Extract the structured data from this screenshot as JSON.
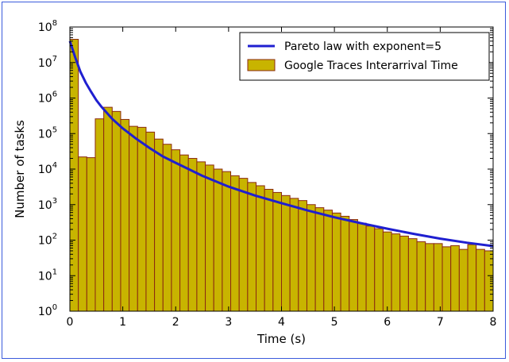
{
  "chart_data": {
    "type": "bar",
    "title": "",
    "xlabel": "Time (s)",
    "ylabel": "Number of tasks",
    "y_scale": "log",
    "xlim": [
      0,
      8
    ],
    "ylim": [
      1,
      100000000
    ],
    "x_ticks": [
      {
        "value": 0,
        "label": "0"
      },
      {
        "value": 1,
        "label": "1"
      },
      {
        "value": 2,
        "label": "2"
      },
      {
        "value": 3,
        "label": "3"
      },
      {
        "value": 4,
        "label": "4"
      },
      {
        "value": 5,
        "label": "5"
      },
      {
        "value": 6,
        "label": "6"
      },
      {
        "value": 7,
        "label": "7"
      },
      {
        "value": 8,
        "label": "8"
      }
    ],
    "y_ticks": [
      {
        "value": 1,
        "base": "10",
        "exp": "0"
      },
      {
        "value": 10,
        "base": "10",
        "exp": "1"
      },
      {
        "value": 100,
        "base": "10",
        "exp": "2"
      },
      {
        "value": 1000,
        "base": "10",
        "exp": "3"
      },
      {
        "value": 10000,
        "base": "10",
        "exp": "4"
      },
      {
        "value": 100000,
        "base": "10",
        "exp": "5"
      },
      {
        "value": 1000000,
        "base": "10",
        "exp": "6"
      },
      {
        "value": 10000000,
        "base": "10",
        "exp": "7"
      },
      {
        "value": 100000000,
        "base": "10",
        "exp": "8"
      }
    ],
    "legend_position": "top-right",
    "grid": false,
    "series": [
      {
        "name": "Pareto law with exponent=5",
        "kind": "line",
        "color": "#1f1fd0",
        "x": [
          0,
          0.1,
          0.2,
          0.3,
          0.4,
          0.5,
          0.6,
          0.8,
          1.0,
          1.25,
          1.5,
          1.75,
          2.0,
          2.5,
          3.0,
          3.5,
          4.0,
          4.5,
          5.0,
          5.5,
          6.0,
          6.5,
          7.0,
          7.5,
          8.0
        ],
        "y": [
          40000000,
          14000000,
          5500000,
          2700000,
          1500000,
          870000,
          560000,
          260000,
          140000,
          72000,
          40000,
          23000,
          15000,
          6500,
          3200,
          1800,
          1100,
          680,
          440,
          300,
          210,
          150,
          110,
          85,
          68
        ]
      },
      {
        "name": "Google Traces Interarrival Time",
        "kind": "histogram",
        "color": "#c8b400",
        "edge_color": "#8b2a10",
        "bin_width": 0.16,
        "bin_start": 0,
        "values": [
          45000000,
          22000,
          21000,
          260000,
          550000,
          420000,
          250000,
          160000,
          150000,
          110000,
          70000,
          50000,
          35000,
          25000,
          20000,
          16000,
          13000,
          10000,
          8500,
          6500,
          5500,
          4200,
          3400,
          2700,
          2200,
          1800,
          1500,
          1300,
          1000,
          820,
          700,
          580,
          470,
          380,
          300,
          250,
          210,
          170,
          150,
          130,
          110,
          90,
          80,
          80,
          65,
          70,
          55,
          75,
          55,
          50
        ]
      }
    ]
  }
}
